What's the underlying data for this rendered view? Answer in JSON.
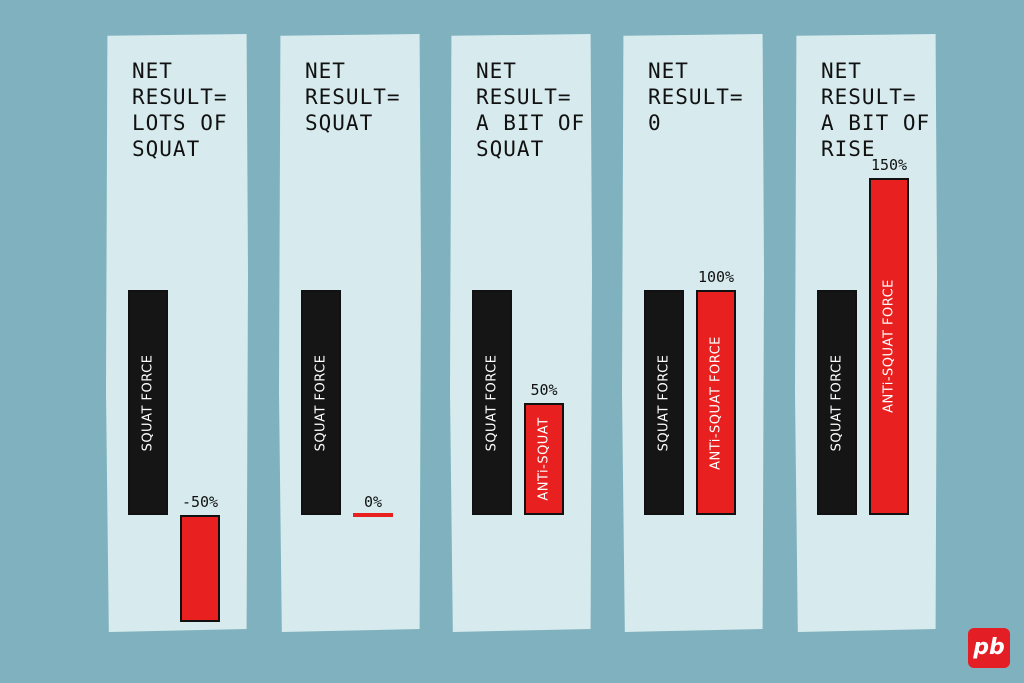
{
  "chart_data": {
    "type": "bar",
    "zero_baseline_description": "",
    "panels": [
      {
        "title": "NET\nRESULT=\nLOTS OF\nSQUAT",
        "squat_label": "SQUAT FORCE",
        "squat_value": 100,
        "anti_label": "",
        "anti_value": -50,
        "anti_pct": "-50%"
      },
      {
        "title": "NET\nRESULT=\nSQUAT",
        "squat_label": "SQUAT FORCE",
        "squat_value": 100,
        "anti_label": "",
        "anti_value": 0,
        "anti_pct": "0%"
      },
      {
        "title": "NET\nRESULT=\nA BiT OF\nSQUAT",
        "squat_label": "SQUAT FORCE",
        "squat_value": 100,
        "anti_label": "ANTi-SQUAT",
        "anti_value": 50,
        "anti_pct": "50%"
      },
      {
        "title": "NET\nRESULT=\n0",
        "squat_label": "SQUAT FORCE",
        "squat_value": 100,
        "anti_label": "ANTi-SQUAT FORCE",
        "anti_value": 100,
        "anti_pct": "100%"
      },
      {
        "title": "NET\nRESULT=\nA BiT OF\nRiSE",
        "squat_label": "SQUAT FORCE",
        "squat_value": 100,
        "anti_label": "ANTi-SQUAT FORCE",
        "anti_value": 150,
        "anti_pct": "150%"
      }
    ],
    "colors": {
      "squat": "#151515",
      "anti": "#e8201f",
      "background": "#7fb2be",
      "panel": "#d7ebee"
    }
  },
  "logo": {
    "text": "pb"
  }
}
